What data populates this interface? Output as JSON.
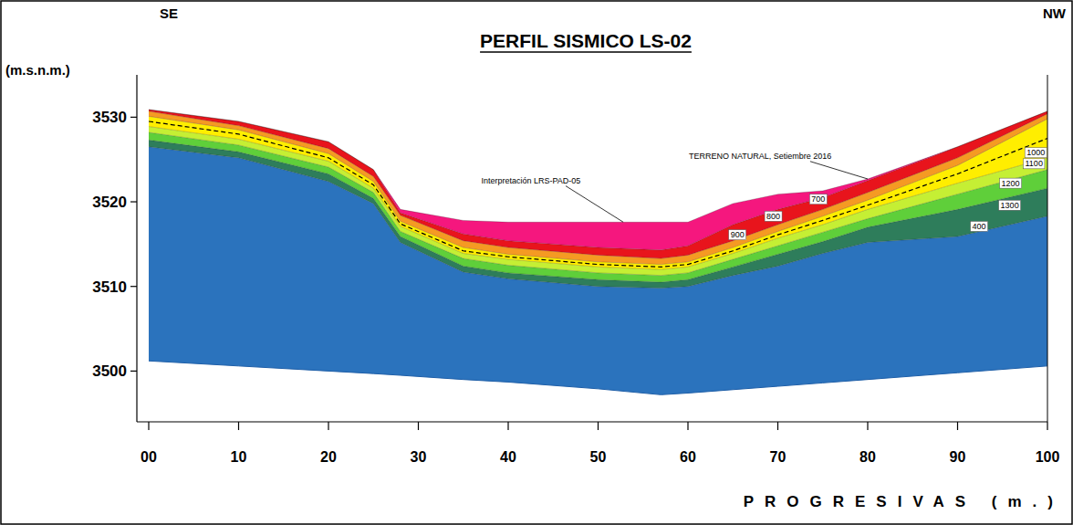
{
  "chart_data": {
    "type": "area",
    "title": "PERFIL SISMICO LS-02",
    "direction_labels": {
      "left": "SE",
      "right": "NW"
    },
    "x_label": "PROGRESIVAS (m.)",
    "y_label": "(m.s.n.m.)",
    "x": [
      0,
      10,
      20,
      25,
      28,
      35,
      40,
      50,
      57,
      60,
      65,
      70,
      75,
      80,
      90,
      100
    ],
    "xlim": [
      0,
      100
    ],
    "ylim": [
      3494,
      3535
    ],
    "xticks": [
      {
        "value": 0,
        "label": "00"
      },
      10,
      20,
      30,
      40,
      50,
      60,
      70,
      80,
      90,
      100
    ],
    "yticks": [
      3500,
      3510,
      3520,
      3530
    ],
    "grid": false,
    "stacked": false,
    "series": [
      {
        "type": "line",
        "color": "#1f5fa8",
        "values": [
          3501.2,
          3500.6,
          3500.0,
          3499.7,
          3499.5,
          3499.0,
          3498.7,
          3497.9,
          3497.2,
          3497.4,
          3497.8,
          3498.2,
          3498.6,
          3499.0,
          3499.8,
          3500.6
        ]
      },
      {
        "type": "area",
        "color": "#2b73bd",
        "values": [
          3526.5,
          3525.2,
          3522.4,
          3519.8,
          3515.2,
          3511.7,
          3510.9,
          3510.0,
          3509.8,
          3510.0,
          3511.3,
          3512.4,
          3513.9,
          3515.2,
          3515.9,
          3518.3
        ]
      },
      {
        "type": "area",
        "color": "#2e7d5b",
        "values": [
          3527.3,
          3525.9,
          3523.3,
          3520.4,
          3515.9,
          3512.4,
          3511.6,
          3510.8,
          3510.5,
          3510.8,
          3512.3,
          3513.8,
          3515.3,
          3517.0,
          3519.1,
          3521.6
        ]
      },
      {
        "type": "area",
        "color": "#5fcf3a",
        "values": [
          3528.2,
          3526.7,
          3524.1,
          3521.1,
          3516.5,
          3513.3,
          3512.5,
          3511.6,
          3511.3,
          3511.6,
          3513.2,
          3514.8,
          3516.4,
          3518.0,
          3520.9,
          3523.8
        ]
      },
      {
        "type": "area",
        "color": "#c5ef34",
        "values": [
          3528.9,
          3527.4,
          3524.8,
          3521.6,
          3517.1,
          3513.9,
          3513.2,
          3512.3,
          3512.0,
          3512.3,
          3513.9,
          3515.7,
          3517.3,
          3519.1,
          3522.2,
          3525.2
        ]
      },
      {
        "type": "area",
        "color": "#ffee00",
        "values": [
          3530.1,
          3528.5,
          3525.7,
          3522.4,
          3517.7,
          3514.6,
          3513.8,
          3512.9,
          3512.6,
          3512.9,
          3514.6,
          3516.5,
          3518.3,
          3520.2,
          3524.3,
          3529.8
        ]
      },
      {
        "type": "line",
        "color": "#000000",
        "line_style": "dashed",
        "values": [
          3529.5,
          3528.0,
          3525.2,
          3522.0,
          3517.4,
          3514.2,
          3513.5,
          3512.6,
          3512.3,
          3512.6,
          3514.2,
          3516.1,
          3517.8,
          3519.6,
          3523.3,
          3527.5
        ]
      },
      {
        "type": "area",
        "color": "#f59a23",
        "values": [
          3530.7,
          3529.0,
          3526.3,
          3523.0,
          3518.4,
          3515.4,
          3514.6,
          3513.7,
          3513.3,
          3513.7,
          3515.4,
          3517.3,
          3519.1,
          3521.1,
          3525.2,
          3530.4
        ]
      },
      {
        "type": "area",
        "color": "#e8141c",
        "values": [
          3530.9,
          3529.5,
          3527.1,
          3523.8,
          3518.7,
          3516.2,
          3515.4,
          3514.6,
          3514.3,
          3514.8,
          3517.3,
          3519.1,
          3520.5,
          3522.5,
          3526.5,
          3530.7
        ]
      },
      {
        "type": "area",
        "color": "#f5177e",
        "values": [
          3530.9,
          3529.5,
          3527.1,
          3523.8,
          3519.1,
          3517.8,
          3517.6,
          3517.6,
          3517.6,
          3517.6,
          3519.8,
          3520.9,
          3521.3,
          3522.7,
          3526.5,
          3530.7
        ]
      }
    ],
    "layer_labels": [
      {
        "text": "700",
        "x": 74.5,
        "y": 3520.3
      },
      {
        "text": "800",
        "x": 69.5,
        "y": 3518.3
      },
      {
        "text": "900",
        "x": 65.5,
        "y": 3516.1
      },
      {
        "text": "1000",
        "x": 98.7,
        "y": 3525.8
      },
      {
        "text": "1100",
        "x": 98.5,
        "y": 3524.5
      },
      {
        "text": "1200",
        "x": 95.9,
        "y": 3522.2
      },
      {
        "text": "1300",
        "x": 95.8,
        "y": 3519.6
      },
      {
        "text": "400",
        "x": 92.4,
        "y": 3517.1
      }
    ],
    "annotations": [
      {
        "text": "TERRENO NATURAL, Setiembre 2016",
        "x": 60.1,
        "y": 3525.1,
        "arrow_to": [
          80,
          3522.7
        ]
      },
      {
        "text": "Interpretación LRS-PAD-05",
        "x": 37,
        "y": 3522.2,
        "arrow_to": [
          52.8,
          3517.6
        ]
      }
    ]
  }
}
